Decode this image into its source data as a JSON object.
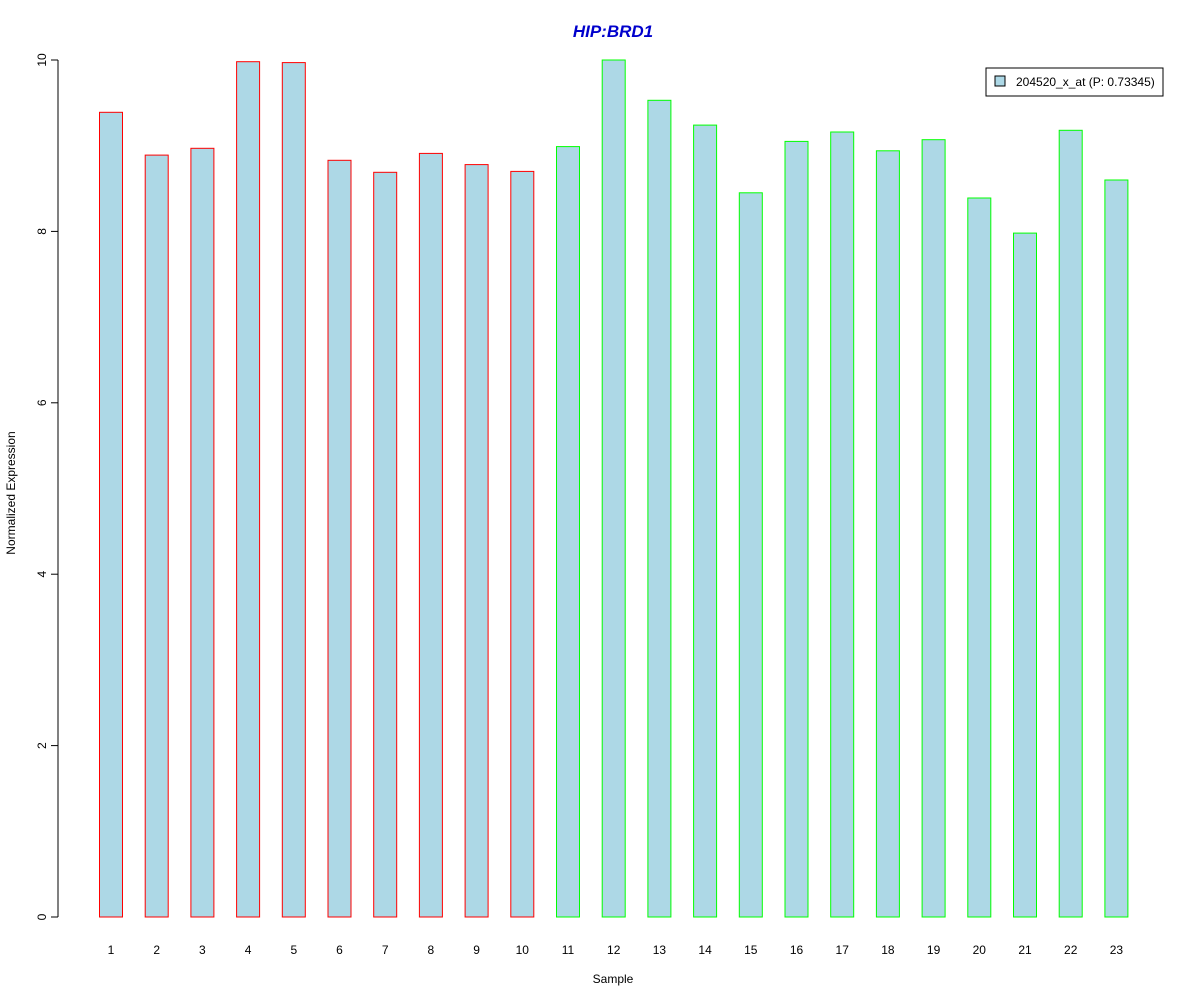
{
  "chart_data": {
    "type": "bar",
    "title": "HIP:BRD1",
    "xlabel": "Sample",
    "ylabel": "Normalized Expression",
    "categories": [
      "1",
      "2",
      "3",
      "4",
      "5",
      "6",
      "7",
      "8",
      "9",
      "10",
      "11",
      "12",
      "13",
      "14",
      "15",
      "16",
      "17",
      "18",
      "19",
      "20",
      "21",
      "22",
      "23"
    ],
    "values": [
      9.39,
      8.89,
      8.97,
      9.98,
      9.97,
      8.83,
      8.69,
      8.91,
      8.78,
      8.7,
      8.99,
      10.0,
      9.53,
      9.24,
      8.45,
      9.05,
      9.16,
      8.94,
      9.07,
      8.39,
      7.98,
      9.18,
      8.6
    ],
    "groups": [
      "red",
      "red",
      "red",
      "red",
      "red",
      "red",
      "red",
      "red",
      "red",
      "red",
      "green",
      "green",
      "green",
      "green",
      "green",
      "green",
      "green",
      "green",
      "green",
      "green",
      "green",
      "green",
      "green"
    ],
    "ylim": [
      0,
      10
    ],
    "yticks": [
      0,
      2,
      4,
      6,
      8,
      10
    ],
    "grid": false,
    "legend": {
      "placement": "top-right",
      "entries": [
        {
          "label": "204520_x_at (P: 0.73345)"
        }
      ]
    },
    "colors": {
      "bar_fill": "#add8e6",
      "group_red_border": "#ff0000",
      "group_green_border": "#00ff00",
      "title": "#0000cc",
      "axis": "#000000"
    }
  }
}
